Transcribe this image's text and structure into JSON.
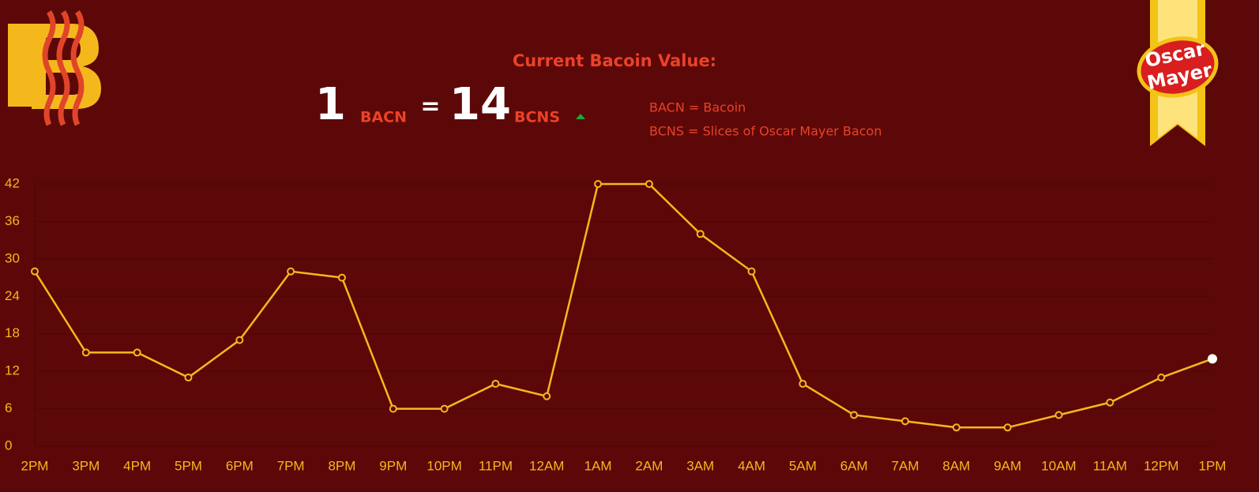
{
  "header": {
    "title": "Current Bacoin Value:",
    "amount": "1",
    "amount_unit": "BACN",
    "equals": "=",
    "price": "14",
    "price_unit": "BCNS",
    "definitions": [
      "BACN = Bacoin",
      "BCNS = Slices of Oscar Mayer Bacon"
    ],
    "logo_text": [
      "Oscar",
      "Mayer"
    ]
  },
  "chart_data": {
    "type": "line",
    "categories": [
      "2PM",
      "3PM",
      "4PM",
      "5PM",
      "6PM",
      "7PM",
      "8PM",
      "9PM",
      "10PM",
      "11PM",
      "12AM",
      "1AM",
      "2AM",
      "3AM",
      "4AM",
      "5AM",
      "6AM",
      "7AM",
      "8AM",
      "9AM",
      "10AM",
      "11AM",
      "12PM",
      "1PM"
    ],
    "values": [
      28,
      15,
      15,
      11,
      17,
      28,
      27,
      6,
      6,
      10,
      8,
      42,
      42,
      34,
      28,
      10,
      5,
      4,
      3,
      3,
      5,
      7,
      11,
      14
    ],
    "color": "#f5b81c",
    "last_point_color": "#ffffff",
    "ylim": [
      0,
      42
    ],
    "yticks": [
      0,
      6,
      12,
      18,
      24,
      30,
      36,
      42
    ],
    "grid": true
  }
}
